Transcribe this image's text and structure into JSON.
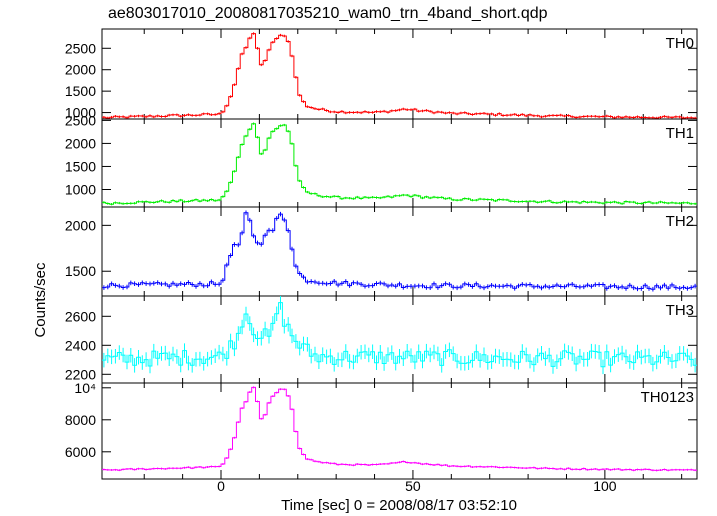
{
  "chart_data": {
    "type": "line",
    "title": "ae803017010_20080817035210_wam0_trn_4band_short.qdp",
    "xlabel": "Time [sec] 0 = 2008/08/17 03:52:10",
    "ylabel": "Counts/sec",
    "xlim": [
      -31,
      124
    ],
    "x_ticks": [
      0,
      50,
      100
    ],
    "x_tick_labels": [
      "0",
      "50",
      "100"
    ],
    "grid": false,
    "panels": [
      {
        "name": "TH0",
        "color": "#ff0000",
        "ylim": [
          850,
          2950
        ],
        "y_ticks": [
          1000,
          1500,
          2000,
          2500
        ],
        "y_tick_labels": [
          "1000",
          "1500",
          "2000",
          "2500"
        ],
        "baseline": 880,
        "noise": 25,
        "err": 30
      },
      {
        "name": "TH1",
        "color": "#00ee00",
        "ylim": [
          620,
          2530
        ],
        "y_ticks": [
          1000,
          1500,
          2000,
          2500
        ],
        "y_tick_labels": [
          "1000",
          "1500",
          "2000",
          "2500"
        ],
        "baseline": 700,
        "noise": 25,
        "err": 25
      },
      {
        "name": "TH2",
        "color": "#0000ff",
        "ylim": [
          1230,
          2200
        ],
        "y_ticks": [
          1500,
          2000
        ],
        "y_tick_labels": [
          "1500",
          "2000"
        ],
        "baseline": 1300,
        "noise": 25,
        "err": 25
      },
      {
        "name": "TH3",
        "color": "#00ffff",
        "ylim": [
          2140,
          2740
        ],
        "y_ticks": [
          2200,
          2400,
          2600
        ],
        "y_tick_labels": [
          "2200",
          "2400",
          "2600"
        ],
        "baseline": 2300,
        "noise": 55,
        "err": 50
      },
      {
        "name": "TH0123",
        "color": "#ff00ff",
        "ylim": [
          4300,
          10300
        ],
        "y_ticks": [
          6000,
          8000,
          10000
        ],
        "y_tick_labels": [
          "6000",
          "8000",
          "10⁴"
        ],
        "baseline": 4850,
        "noise": 40,
        "err": 60
      }
    ],
    "peak_profile": {
      "x": [
        -31,
        0,
        2,
        4,
        5,
        7,
        8,
        9,
        10,
        11,
        12,
        13,
        15,
        16,
        17,
        18,
        19,
        20,
        22,
        25,
        30,
        40,
        45,
        48,
        52,
        60,
        70,
        85,
        100,
        124
      ],
      "frac": [
        0,
        0.04,
        0.18,
        0.45,
        0.68,
        0.85,
        0.97,
        0.98,
        0.62,
        0.58,
        0.72,
        0.85,
        0.92,
        0.97,
        0.93,
        0.82,
        0.62,
        0.3,
        0.14,
        0.1,
        0.07,
        0.06,
        0.08,
        0.1,
        0.08,
        0.05,
        0.04,
        0.02,
        0.01,
        0
      ]
    },
    "th2_profile": {
      "x": [
        -31,
        0,
        2,
        3,
        4,
        5,
        6,
        7,
        8,
        9,
        10,
        11,
        12,
        13,
        14,
        15,
        16,
        17,
        18,
        19,
        20,
        22,
        30,
        50,
        124
      ],
      "frac": [
        0.05,
        0.07,
        0.35,
        0.5,
        0.6,
        0.45,
        0.92,
        0.95,
        0.78,
        0.58,
        0.55,
        0.62,
        0.78,
        0.65,
        0.82,
        0.9,
        0.95,
        0.8,
        0.7,
        0.35,
        0.22,
        0.12,
        0.08,
        0.05,
        0.03
      ]
    },
    "th3_profile": {
      "x": [
        -31,
        0,
        3,
        5,
        6,
        7,
        8,
        10,
        13,
        15,
        16,
        17,
        19,
        21,
        25,
        124
      ],
      "frac": [
        0,
        0.05,
        0.25,
        0.45,
        0.85,
        0.7,
        0.55,
        0.4,
        0.35,
        0.9,
        0.75,
        0.55,
        0.35,
        0.2,
        0.05,
        0
      ]
    }
  }
}
